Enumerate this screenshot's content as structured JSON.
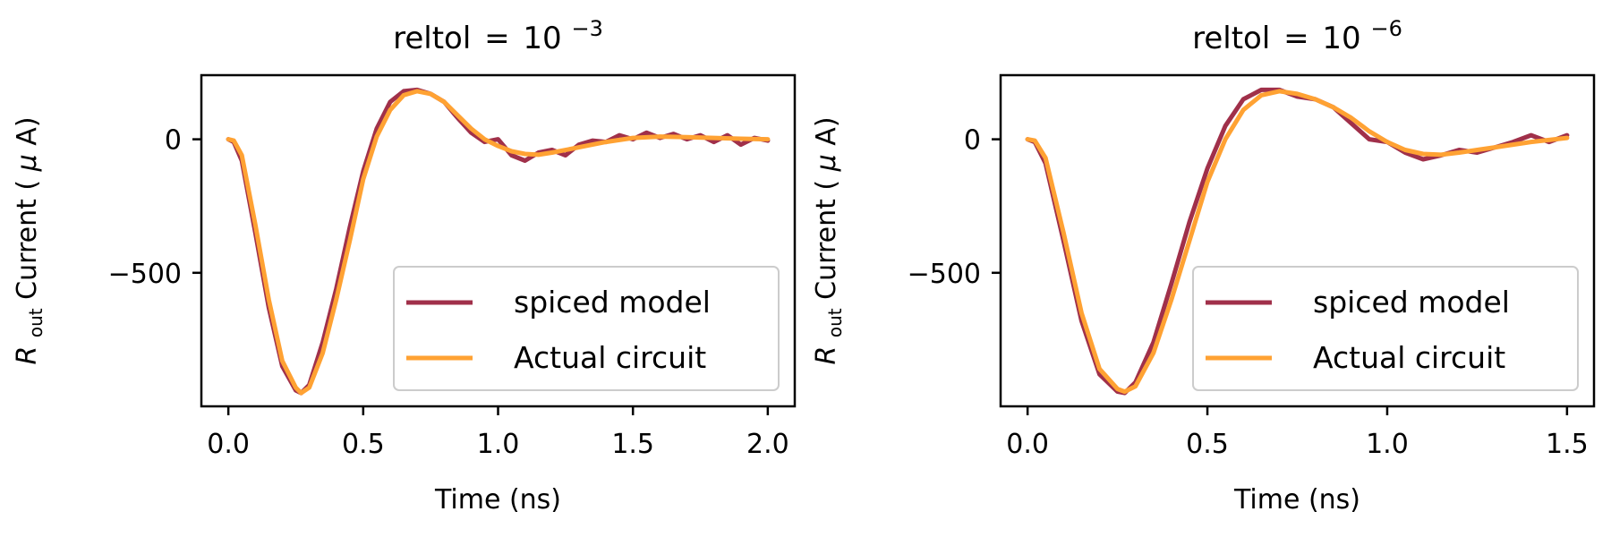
{
  "colors": {
    "spiced": "#A0304A",
    "actual": "#FFA233",
    "axis": "#000000",
    "legend_border": "#cccccc"
  },
  "chart_data": [
    {
      "type": "line",
      "title": {
        "prefix": "reltol",
        "eq": "=",
        "base": "10",
        "exp": "−3"
      },
      "xlabel": "Time (ns)",
      "ylabel": {
        "main": "R",
        "sub": "out",
        "rest": " Current (",
        "mu": "μ",
        "unit": "A)"
      },
      "xlim": [
        -0.1,
        2.1
      ],
      "ylim": [
        -1000,
        240
      ],
      "xticks": [
        0.0,
        0.5,
        1.0,
        1.5,
        2.0
      ],
      "xtick_labels": [
        "0.0",
        "0.5",
        "1.0",
        "1.5",
        "2.0"
      ],
      "yticks": [
        0,
        -500
      ],
      "ytick_labels": [
        "0",
        "−500"
      ],
      "grid": false,
      "legend": {
        "position": "lower right",
        "entries": [
          "spiced model",
          "Actual circuit"
        ]
      },
      "series": [
        {
          "name": "spiced model",
          "color": "#A0304A",
          "x": [
            0.0,
            0.02,
            0.05,
            0.1,
            0.15,
            0.2,
            0.25,
            0.27,
            0.3,
            0.35,
            0.4,
            0.45,
            0.5,
            0.55,
            0.6,
            0.65,
            0.7,
            0.75,
            0.8,
            0.85,
            0.9,
            0.95,
            1.0,
            1.05,
            1.1,
            1.15,
            1.2,
            1.25,
            1.3,
            1.35,
            1.4,
            1.45,
            1.5,
            1.55,
            1.6,
            1.65,
            1.7,
            1.75,
            1.8,
            1.85,
            1.9,
            1.95,
            2.0
          ],
          "y": [
            0,
            -10,
            -80,
            -350,
            -630,
            -850,
            -940,
            -950,
            -920,
            -760,
            -560,
            -330,
            -120,
            40,
            140,
            180,
            185,
            170,
            140,
            80,
            25,
            -10,
            0,
            -60,
            -80,
            -50,
            -40,
            -60,
            -20,
            -5,
            -10,
            15,
            0,
            25,
            5,
            20,
            0,
            15,
            -10,
            15,
            -20,
            5,
            -5
          ]
        },
        {
          "name": "Actual circuit",
          "color": "#FFA233",
          "x": [
            0.0,
            0.02,
            0.05,
            0.1,
            0.15,
            0.2,
            0.25,
            0.27,
            0.3,
            0.35,
            0.4,
            0.45,
            0.5,
            0.55,
            0.6,
            0.65,
            0.7,
            0.75,
            0.8,
            0.85,
            0.9,
            0.95,
            1.0,
            1.05,
            1.1,
            1.15,
            1.2,
            1.3,
            1.4,
            1.5,
            1.6,
            1.7,
            1.8,
            1.9,
            2.0
          ],
          "y": [
            0,
            -5,
            -60,
            -320,
            -600,
            -830,
            -930,
            -950,
            -930,
            -800,
            -600,
            -380,
            -150,
            10,
            110,
            165,
            180,
            170,
            140,
            90,
            40,
            0,
            -25,
            -45,
            -55,
            -58,
            -50,
            -30,
            -10,
            5,
            10,
            8,
            5,
            2,
            0
          ]
        }
      ]
    },
    {
      "type": "line",
      "title": {
        "prefix": "reltol",
        "eq": "=",
        "base": "10",
        "exp": "−6"
      },
      "xlabel": "Time (ns)",
      "ylabel": {
        "main": "R",
        "sub": "out",
        "rest": " Current (",
        "mu": "μ",
        "unit": "A)"
      },
      "xlim": [
        -0.075,
        1.575
      ],
      "ylim": [
        -1000,
        240
      ],
      "xticks": [
        0.0,
        0.5,
        1.0,
        1.5
      ],
      "xtick_labels": [
        "0.0",
        "0.5",
        "1.0",
        "1.5"
      ],
      "yticks": [
        0,
        -500
      ],
      "ytick_labels": [
        "0",
        "−500"
      ],
      "grid": false,
      "legend": {
        "position": "lower right",
        "entries": [
          "spiced model",
          "Actual circuit"
        ]
      },
      "series": [
        {
          "name": "spiced model",
          "color": "#A0304A",
          "x": [
            0.0,
            0.02,
            0.05,
            0.1,
            0.15,
            0.2,
            0.25,
            0.27,
            0.3,
            0.35,
            0.4,
            0.45,
            0.5,
            0.55,
            0.6,
            0.65,
            0.7,
            0.75,
            0.8,
            0.85,
            0.9,
            0.95,
            1.0,
            1.05,
            1.1,
            1.15,
            1.2,
            1.25,
            1.3,
            1.35,
            1.4,
            1.45,
            1.5
          ],
          "y": [
            0,
            -10,
            -90,
            -380,
            -680,
            -880,
            -945,
            -950,
            -910,
            -760,
            -540,
            -310,
            -110,
            50,
            150,
            185,
            185,
            160,
            150,
            120,
            60,
            0,
            -10,
            -50,
            -75,
            -60,
            -40,
            -50,
            -30,
            -10,
            15,
            -10,
            15
          ]
        },
        {
          "name": "Actual circuit",
          "color": "#FFA233",
          "x": [
            0.0,
            0.02,
            0.05,
            0.1,
            0.15,
            0.2,
            0.25,
            0.27,
            0.3,
            0.35,
            0.4,
            0.45,
            0.5,
            0.55,
            0.6,
            0.65,
            0.7,
            0.75,
            0.8,
            0.85,
            0.9,
            0.95,
            1.0,
            1.05,
            1.1,
            1.15,
            1.2,
            1.3,
            1.4,
            1.5
          ],
          "y": [
            0,
            -5,
            -70,
            -350,
            -650,
            -860,
            -935,
            -945,
            -925,
            -800,
            -600,
            -380,
            -160,
            0,
            110,
            165,
            180,
            170,
            150,
            120,
            80,
            30,
            -10,
            -40,
            -55,
            -58,
            -50,
            -30,
            -10,
            5
          ]
        }
      ]
    }
  ]
}
